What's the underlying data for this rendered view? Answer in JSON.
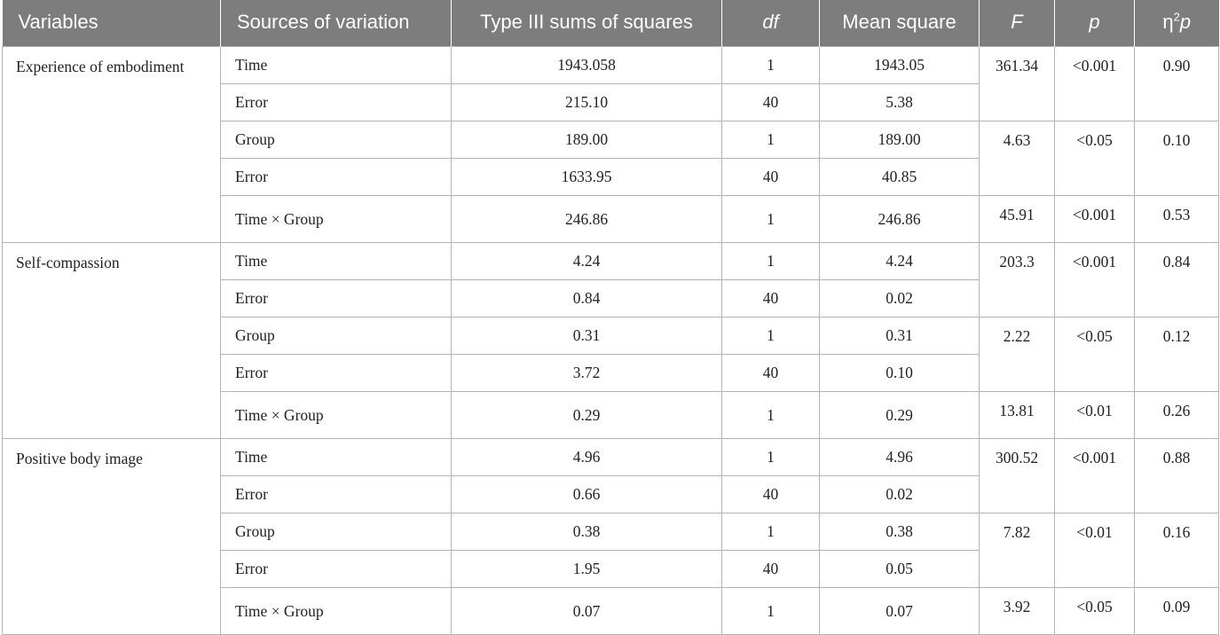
{
  "headers": {
    "variables": "Variables",
    "sources": "Sources of variation",
    "ss": "Type III sums of squares",
    "df": "df",
    "ms": "Mean square",
    "f": "F",
    "p": "p",
    "eta_base": "η",
    "eta_sup": "2",
    "eta_tail": "p"
  },
  "groups": [
    {
      "variable": "Experience of embodiment",
      "rows": [
        {
          "source": "Time",
          "ss": "1943.058",
          "df": "1",
          "ms": "1943.05"
        },
        {
          "source": "Error",
          "ss": "215.10",
          "df": "40",
          "ms": "5.38"
        },
        {
          "source": "Group",
          "ss": "189.00",
          "df": "1",
          "ms": "189.00"
        },
        {
          "source": "Error",
          "ss": "1633.95",
          "df": "40",
          "ms": "40.85"
        },
        {
          "source": "Time × Group",
          "ss": "246.86",
          "df": "1",
          "ms": "246.86"
        }
      ],
      "stats": [
        {
          "f": "361.34",
          "p": "<0.001",
          "eta": "0.90"
        },
        {
          "f": "4.63",
          "p": "<0.05",
          "eta": "0.10"
        },
        {
          "f": "45.91",
          "p": "<0.001",
          "eta": "0.53"
        }
      ]
    },
    {
      "variable": "Self-compassion",
      "rows": [
        {
          "source": "Time",
          "ss": "4.24",
          "df": "1",
          "ms": "4.24"
        },
        {
          "source": "Error",
          "ss": "0.84",
          "df": "40",
          "ms": "0.02"
        },
        {
          "source": "Group",
          "ss": "0.31",
          "df": "1",
          "ms": "0.31"
        },
        {
          "source": "Error",
          "ss": "3.72",
          "df": "40",
          "ms": "0.10"
        },
        {
          "source": "Time × Group",
          "ss": "0.29",
          "df": "1",
          "ms": "0.29"
        }
      ],
      "stats": [
        {
          "f": "203.3",
          "p": "<0.001",
          "eta": "0.84"
        },
        {
          "f": "2.22",
          "p": "<0.05",
          "eta": "0.12"
        },
        {
          "f": "13.81",
          "p": "<0.01",
          "eta": "0.26"
        }
      ]
    },
    {
      "variable": "Positive body image",
      "rows": [
        {
          "source": "Time",
          "ss": "4.96",
          "df": "1",
          "ms": "4.96"
        },
        {
          "source": "Error",
          "ss": "0.66",
          "df": "40",
          "ms": "0.02"
        },
        {
          "source": "Group",
          "ss": "0.38",
          "df": "1",
          "ms": "0.38"
        },
        {
          "source": "Error",
          "ss": "1.95",
          "df": "40",
          "ms": "0.05"
        },
        {
          "source": "Time × Group",
          "ss": "0.07",
          "df": "1",
          "ms": "0.07"
        }
      ],
      "stats": [
        {
          "f": "300.52",
          "p": "<0.001",
          "eta": "0.88"
        },
        {
          "f": "7.82",
          "p": "<0.01",
          "eta": "0.16"
        },
        {
          "f": "3.92",
          "p": "<0.05",
          "eta": "0.09"
        }
      ]
    }
  ]
}
